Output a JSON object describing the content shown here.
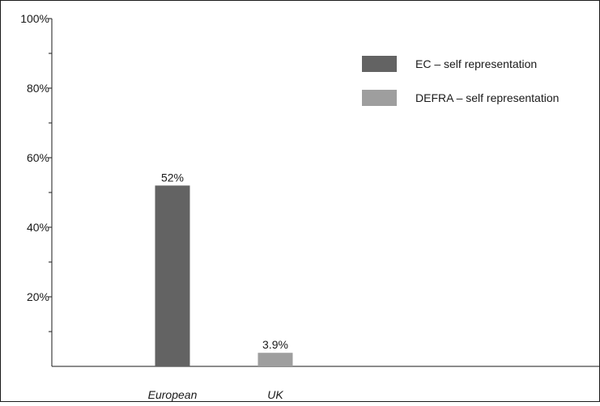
{
  "chart_data": {
    "type": "bar",
    "categories": [
      "European",
      "UK"
    ],
    "series": [
      {
        "name": "EC – self representation",
        "values": [
          52,
          null
        ],
        "color": "#636363"
      },
      {
        "name": "DEFRA – self representation",
        "values": [
          null,
          3.9
        ],
        "color": "#9e9e9e"
      }
    ],
    "data_labels": [
      "52%",
      "3.9%"
    ],
    "ylim": [
      0,
      100
    ],
    "y_ticks": [
      {
        "value": 20,
        "label": "20%"
      },
      {
        "value": 40,
        "label": "40%"
      },
      {
        "value": 60,
        "label": "60%"
      },
      {
        "value": 80,
        "label": "80%"
      },
      {
        "value": 100,
        "label": "100%"
      }
    ],
    "y_minor_step": 10,
    "legend_position": "top-right",
    "grid": false,
    "title": "",
    "xlabel": "",
    "ylabel": ""
  }
}
